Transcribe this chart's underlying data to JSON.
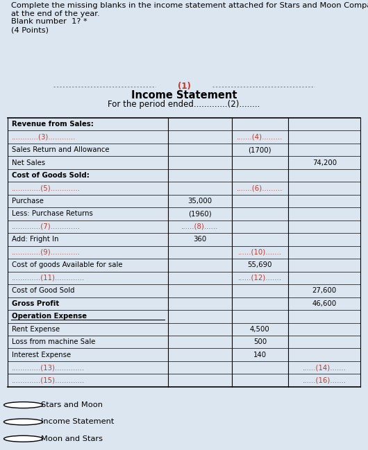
{
  "bg_color": "#dce6f1",
  "white": "#ffffff",
  "red": "#c0392b",
  "black": "#000000",
  "question_text": "Complete the missing blanks in the income statement attached for Stars and Moon Company\nat the end of the year.\nBlank number  1? *\n(4 Points)",
  "header1": "(1)",
  "header2": "Income Statement",
  "header3": "For the period ended.............(2)........",
  "table_rows": [
    {
      "label": "Revenue from Sales:",
      "col1": "",
      "col2": "",
      "col3": "",
      "bold": true
    },
    {
      "label": "............(3)............",
      "col1": "",
      "col2": ".......(4).........",
      "col3": "",
      "red_label": true,
      "red_col2": true
    },
    {
      "label": "Sales Return and Allowance",
      "col1": "",
      "col2": "(1700)",
      "col3": ""
    },
    {
      "label": "Net Sales",
      "col1": "",
      "col2": "",
      "col3": "74,200"
    },
    {
      "label": "Cost of Goods Sold:",
      "col1": "",
      "col2": "",
      "col3": "",
      "bold": true
    },
    {
      "label": ".............(5).............",
      "col1": "",
      "col2": ".......(6).........",
      "col3": "",
      "red_label": true,
      "red_col2": true
    },
    {
      "label": "Purchase",
      "col1": "35,000",
      "col2": "",
      "col3": ""
    },
    {
      "label": "Less: Purchase Returns",
      "col1": "(1960)",
      "col2": "",
      "col3": ""
    },
    {
      "label": ".............(7).............",
      "col1": "......(8)......",
      "col2": "",
      "col3": "",
      "red_label": true,
      "red_col1": true
    },
    {
      "label": "Add: Fright In",
      "col1": "360",
      "col2": "",
      "col3": ""
    },
    {
      "label": ".............(9).............",
      "col1": "",
      "col2": "......(10).......",
      "col3": "",
      "red_label": true,
      "red_col2": true
    },
    {
      "label": "Cost of goods Available for sale",
      "col1": "",
      "col2": "55,690",
      "col3": ""
    },
    {
      "label": ".............(11).............",
      "col1": "",
      "col2": "......(12).......",
      "col3": "",
      "red_label": true,
      "red_col2": true
    },
    {
      "label": "Cost of Good Sold",
      "col1": "",
      "col2": "",
      "col3": "27,600"
    },
    {
      "label": "Gross Profit",
      "col1": "",
      "col2": "",
      "col3": "46,600",
      "bold": true
    },
    {
      "label": "Operation Expense",
      "col1": "",
      "col2": "",
      "col3": "",
      "bold": true,
      "underline_label": true
    },
    {
      "label": "Rent Expense",
      "col1": "",
      "col2": "4,500",
      "col3": ""
    },
    {
      "label": "Loss from machine Sale",
      "col1": "",
      "col2": "500",
      "col3": ""
    },
    {
      "label": "Interest Expense",
      "col1": "",
      "col2": "140",
      "col3": ""
    },
    {
      "label": ".............(13).............",
      "col1": "",
      "col2": "",
      "col3": "......(14).......",
      "red_label": true,
      "red_col3": true
    },
    {
      "label": ".............(15).............",
      "col1": "",
      "col2": "",
      "col3": "......(16).......",
      "red_label": true,
      "red_col3": true
    }
  ],
  "radio_options": [
    "Stars and Moon",
    "Income Statement",
    "Moon and Stars"
  ]
}
